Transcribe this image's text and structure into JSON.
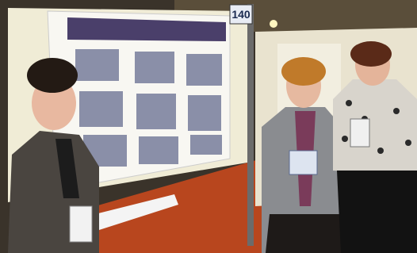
{
  "sign": {
    "number": "140"
  }
}
